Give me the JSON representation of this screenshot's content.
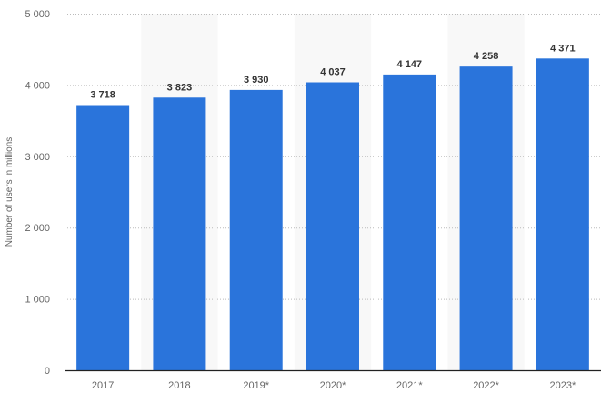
{
  "chart_data": {
    "type": "bar",
    "title": "",
    "xlabel": "",
    "ylabel": "Number of users in millions",
    "categories": [
      "2017",
      "2018",
      "2019*",
      "2020*",
      "2021*",
      "2022*",
      "2023*"
    ],
    "values": [
      3718,
      3823,
      3930,
      4037,
      4147,
      4258,
      4371
    ],
    "value_labels": [
      "3 718",
      "3 823",
      "3 930",
      "4 037",
      "4 147",
      "4 258",
      "4 371"
    ],
    "ylim": [
      0,
      5000
    ],
    "yticks": [
      0,
      1000,
      2000,
      3000,
      4000,
      5000
    ],
    "ytick_labels": [
      "0",
      "1 000",
      "2 000",
      "3 000",
      "4 000",
      "5 000"
    ],
    "grid": true,
    "bar_color": "#2a74db"
  }
}
